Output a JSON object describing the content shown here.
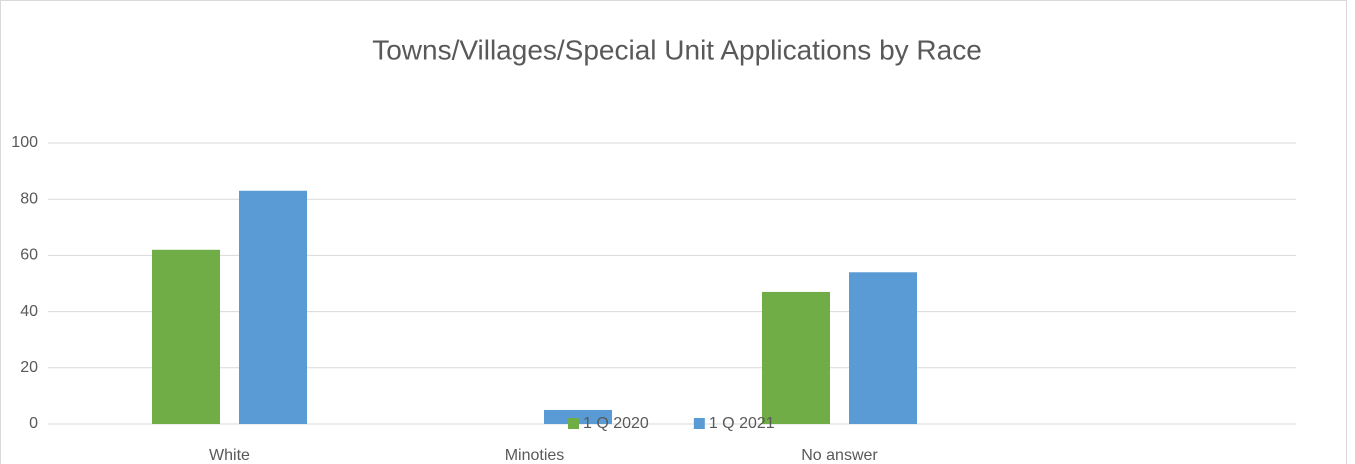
{
  "chart_data": {
    "type": "bar",
    "title": "Towns/Villages/Special Unit Applications by Race",
    "categories": [
      "White",
      "Minoties",
      "No answer",
      null
    ],
    "series": [
      {
        "name": "1 Q 2020",
        "color": "#70ad47",
        "values": [
          62,
          0,
          47,
          null
        ]
      },
      {
        "name": "1 Q 2021",
        "color": "#5b9bd5",
        "values": [
          83,
          5,
          54,
          null
        ]
      }
    ],
    "ylim": [
      0,
      100
    ],
    "yticks": [
      0,
      20,
      40,
      60,
      80,
      100
    ],
    "grid": true,
    "legend": "bottom"
  }
}
